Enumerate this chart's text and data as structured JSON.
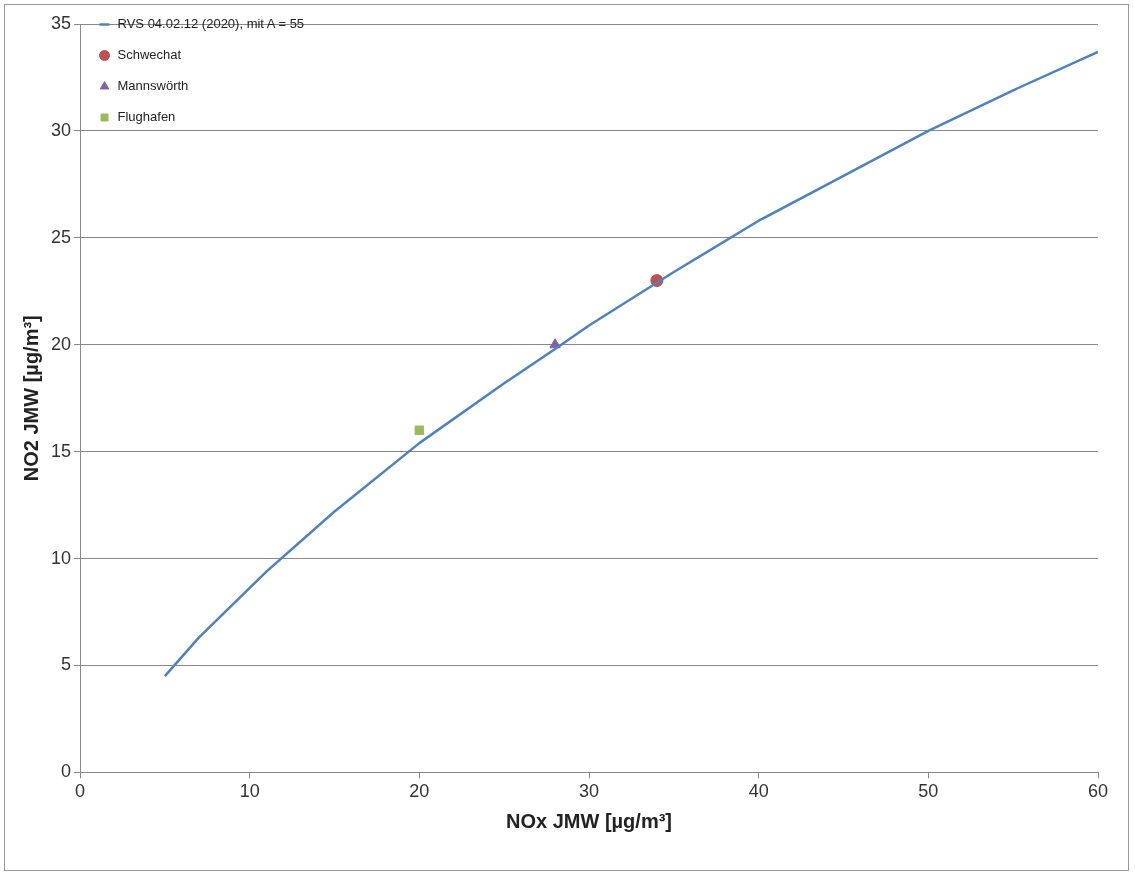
{
  "chart_data": {
    "type": "scatter",
    "xlabel": "NOx JMW [µg/m³]",
    "ylabel": "NO2 JMW [µg/m³]",
    "xlim": [
      0,
      60
    ],
    "xticks": [
      0,
      10,
      20,
      30,
      40,
      50,
      60
    ],
    "ylim": [
      0,
      35
    ],
    "yticks": [
      0,
      5,
      10,
      15,
      20,
      25,
      30,
      35
    ],
    "grid": "y",
    "legend": "top left",
    "series": [
      {
        "name": "RVS 04.02.12 (2020), mit A = 55",
        "type": "line",
        "marker": "none",
        "color": "#4f81bd",
        "x": [
          5,
          7,
          11,
          15,
          20,
          25,
          28,
          30,
          35,
          40,
          45,
          50,
          55,
          60
        ],
        "values": [
          4.5,
          6.3,
          9.4,
          12.2,
          15.4,
          18.2,
          19.8,
          20.9,
          23.4,
          25.8,
          27.9,
          30.0,
          31.9,
          33.7
        ]
      },
      {
        "name": "Schwechat",
        "type": "scatter",
        "marker": "circle",
        "color": "#c0504d",
        "x": [
          34
        ],
        "values": [
          23
        ]
      },
      {
        "name": "Mannswörth",
        "type": "scatter",
        "marker": "triangle",
        "color": "#8064a2",
        "x": [
          28
        ],
        "values": [
          20
        ]
      },
      {
        "name": "Flughafen",
        "type": "scatter",
        "marker": "square",
        "color": "#9bbb59",
        "x": [
          20
        ],
        "values": [
          16
        ]
      }
    ]
  }
}
